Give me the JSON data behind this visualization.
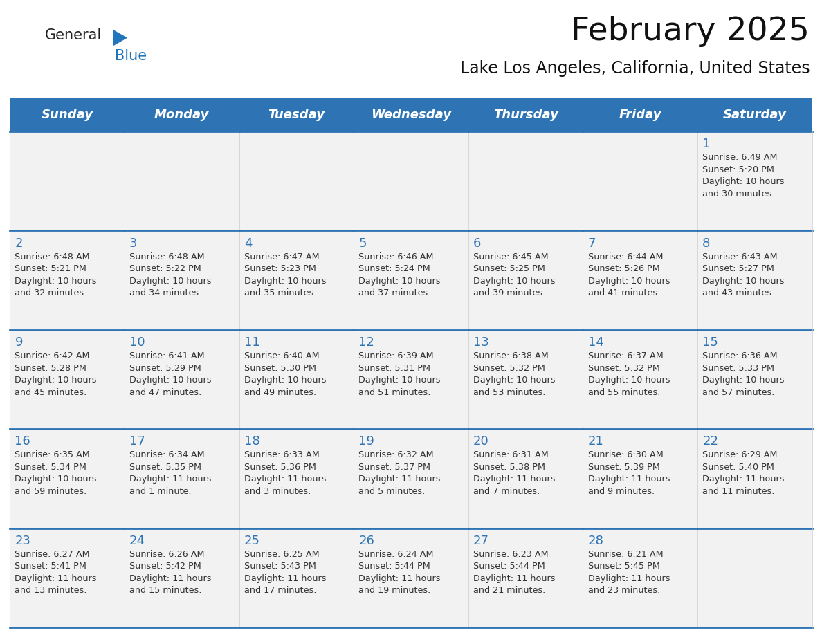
{
  "title": "February 2025",
  "subtitle": "Lake Los Angeles, California, United States",
  "header_color": "#2e74b5",
  "header_text_color": "#ffffff",
  "cell_border_color": "#2e74b5",
  "cell_bg_color": "#f2f2f2",
  "day_number_color": "#2e74b5",
  "info_text_color": "#333333",
  "background_color": "#ffffff",
  "days_of_week": [
    "Sunday",
    "Monday",
    "Tuesday",
    "Wednesday",
    "Thursday",
    "Friday",
    "Saturday"
  ],
  "weeks": [
    [
      {
        "day": "",
        "info": ""
      },
      {
        "day": "",
        "info": ""
      },
      {
        "day": "",
        "info": ""
      },
      {
        "day": "",
        "info": ""
      },
      {
        "day": "",
        "info": ""
      },
      {
        "day": "",
        "info": ""
      },
      {
        "day": "1",
        "info": "Sunrise: 6:49 AM\nSunset: 5:20 PM\nDaylight: 10 hours\nand 30 minutes."
      }
    ],
    [
      {
        "day": "2",
        "info": "Sunrise: 6:48 AM\nSunset: 5:21 PM\nDaylight: 10 hours\nand 32 minutes."
      },
      {
        "day": "3",
        "info": "Sunrise: 6:48 AM\nSunset: 5:22 PM\nDaylight: 10 hours\nand 34 minutes."
      },
      {
        "day": "4",
        "info": "Sunrise: 6:47 AM\nSunset: 5:23 PM\nDaylight: 10 hours\nand 35 minutes."
      },
      {
        "day": "5",
        "info": "Sunrise: 6:46 AM\nSunset: 5:24 PM\nDaylight: 10 hours\nand 37 minutes."
      },
      {
        "day": "6",
        "info": "Sunrise: 6:45 AM\nSunset: 5:25 PM\nDaylight: 10 hours\nand 39 minutes."
      },
      {
        "day": "7",
        "info": "Sunrise: 6:44 AM\nSunset: 5:26 PM\nDaylight: 10 hours\nand 41 minutes."
      },
      {
        "day": "8",
        "info": "Sunrise: 6:43 AM\nSunset: 5:27 PM\nDaylight: 10 hours\nand 43 minutes."
      }
    ],
    [
      {
        "day": "9",
        "info": "Sunrise: 6:42 AM\nSunset: 5:28 PM\nDaylight: 10 hours\nand 45 minutes."
      },
      {
        "day": "10",
        "info": "Sunrise: 6:41 AM\nSunset: 5:29 PM\nDaylight: 10 hours\nand 47 minutes."
      },
      {
        "day": "11",
        "info": "Sunrise: 6:40 AM\nSunset: 5:30 PM\nDaylight: 10 hours\nand 49 minutes."
      },
      {
        "day": "12",
        "info": "Sunrise: 6:39 AM\nSunset: 5:31 PM\nDaylight: 10 hours\nand 51 minutes."
      },
      {
        "day": "13",
        "info": "Sunrise: 6:38 AM\nSunset: 5:32 PM\nDaylight: 10 hours\nand 53 minutes."
      },
      {
        "day": "14",
        "info": "Sunrise: 6:37 AM\nSunset: 5:32 PM\nDaylight: 10 hours\nand 55 minutes."
      },
      {
        "day": "15",
        "info": "Sunrise: 6:36 AM\nSunset: 5:33 PM\nDaylight: 10 hours\nand 57 minutes."
      }
    ],
    [
      {
        "day": "16",
        "info": "Sunrise: 6:35 AM\nSunset: 5:34 PM\nDaylight: 10 hours\nand 59 minutes."
      },
      {
        "day": "17",
        "info": "Sunrise: 6:34 AM\nSunset: 5:35 PM\nDaylight: 11 hours\nand 1 minute."
      },
      {
        "day": "18",
        "info": "Sunrise: 6:33 AM\nSunset: 5:36 PM\nDaylight: 11 hours\nand 3 minutes."
      },
      {
        "day": "19",
        "info": "Sunrise: 6:32 AM\nSunset: 5:37 PM\nDaylight: 11 hours\nand 5 minutes."
      },
      {
        "day": "20",
        "info": "Sunrise: 6:31 AM\nSunset: 5:38 PM\nDaylight: 11 hours\nand 7 minutes."
      },
      {
        "day": "21",
        "info": "Sunrise: 6:30 AM\nSunset: 5:39 PM\nDaylight: 11 hours\nand 9 minutes."
      },
      {
        "day": "22",
        "info": "Sunrise: 6:29 AM\nSunset: 5:40 PM\nDaylight: 11 hours\nand 11 minutes."
      }
    ],
    [
      {
        "day": "23",
        "info": "Sunrise: 6:27 AM\nSunset: 5:41 PM\nDaylight: 11 hours\nand 13 minutes."
      },
      {
        "day": "24",
        "info": "Sunrise: 6:26 AM\nSunset: 5:42 PM\nDaylight: 11 hours\nand 15 minutes."
      },
      {
        "day": "25",
        "info": "Sunrise: 6:25 AM\nSunset: 5:43 PM\nDaylight: 11 hours\nand 17 minutes."
      },
      {
        "day": "26",
        "info": "Sunrise: 6:24 AM\nSunset: 5:44 PM\nDaylight: 11 hours\nand 19 minutes."
      },
      {
        "day": "27",
        "info": "Sunrise: 6:23 AM\nSunset: 5:44 PM\nDaylight: 11 hours\nand 21 minutes."
      },
      {
        "day": "28",
        "info": "Sunrise: 6:21 AM\nSunset: 5:45 PM\nDaylight: 11 hours\nand 23 minutes."
      },
      {
        "day": "",
        "info": ""
      }
    ]
  ],
  "logo_general_color": "#222222",
  "logo_blue_color": "#2175bc",
  "title_fontsize": 34,
  "subtitle_fontsize": 17,
  "header_fontsize": 13,
  "day_number_fontsize": 13,
  "info_fontsize": 9.2,
  "logo_fontsize": 15
}
